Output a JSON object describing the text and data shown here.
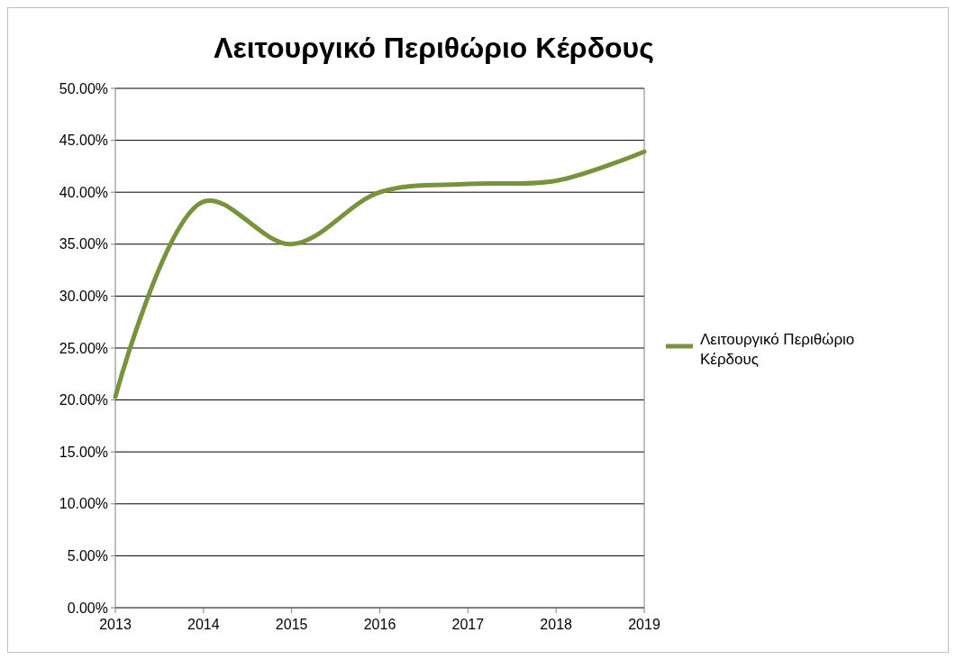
{
  "chart_data": {
    "type": "line",
    "title": "Λειτουργικό Περιθώριο Κέρδους",
    "x": [
      2013,
      2014,
      2015,
      2016,
      2017,
      2018,
      2019
    ],
    "series": [
      {
        "name": "Λειτουργικό Περιθώριο Κέρδους",
        "color": "#77933c",
        "values": [
          20.3,
          39.1,
          35.0,
          40.0,
          40.8,
          41.1,
          43.9
        ]
      }
    ],
    "xlim": [
      2013,
      2019
    ],
    "xticks": [
      2013,
      2014,
      2015,
      2016,
      2017,
      2018,
      2019
    ],
    "ylim": [
      0,
      50
    ],
    "yticks": [
      {
        "value": 0,
        "label": "0.00%"
      },
      {
        "value": 5,
        "label": "5.00%"
      },
      {
        "value": 10,
        "label": "10.00%"
      },
      {
        "value": 15,
        "label": "15.00%"
      },
      {
        "value": 20,
        "label": "20.00%"
      },
      {
        "value": 25,
        "label": "25.00%"
      },
      {
        "value": 30,
        "label": "30.00%"
      },
      {
        "value": 35,
        "label": "35.00%"
      },
      {
        "value": 40,
        "label": "40.00%"
      },
      {
        "value": 45,
        "label": "45.00%"
      },
      {
        "value": 50,
        "label": "50.00%"
      }
    ],
    "grid": "y",
    "legend": "right",
    "marker": "none",
    "line_style": "solid"
  }
}
